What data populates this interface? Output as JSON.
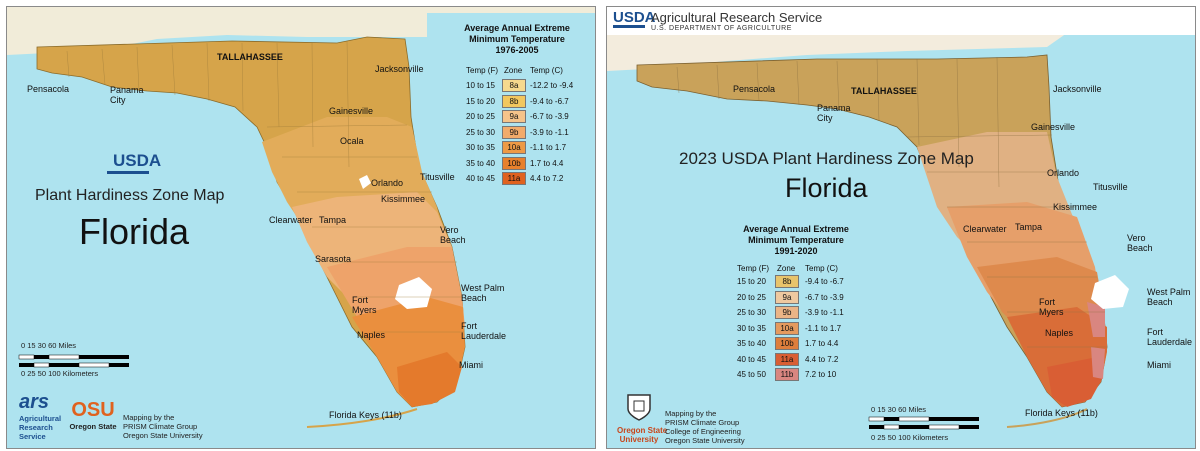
{
  "left_map": {
    "title": "Plant Hardiness Zone Map",
    "state": "Florida",
    "usda_logo_text": "USDA",
    "legend": {
      "title_lines": [
        "Average Annual Extreme",
        "Minimum Temperature",
        "1976-2005"
      ],
      "col_temp_f": "Temp (F)",
      "col_zone": "Zone",
      "col_temp_c": "Temp (C)",
      "rows": [
        {
          "temp_f": "10 to 15",
          "zone": "8a",
          "temp_c": "-12.2 to -9.4",
          "color": "#f6d98d"
        },
        {
          "temp_f": "15 to 20",
          "zone": "8b",
          "temp_c": "-9.4 to -6.7",
          "color": "#f2c75e"
        },
        {
          "temp_f": "20 to 25",
          "zone": "9a",
          "temp_c": "-6.7 to -3.9",
          "color": "#f5c38a"
        },
        {
          "temp_f": "25 to 30",
          "zone": "9b",
          "temp_c": "-3.9 to -1.1",
          "color": "#f2ab6a"
        },
        {
          "temp_f": "30 to 35",
          "zone": "10a",
          "temp_c": "-1.1 to 1.7",
          "color": "#ee9a45"
        },
        {
          "temp_f": "35 to 40",
          "zone": "10b",
          "temp_c": "1.7 to 4.4",
          "color": "#e8812c"
        },
        {
          "temp_f": "40 to 45",
          "zone": "11a",
          "temp_c": "4.4 to 7.2",
          "color": "#e0621f"
        }
      ]
    },
    "cities": [
      "Pensacola",
      "Panama City",
      "TALLAHASSEE",
      "Jacksonville",
      "Gainesville",
      "Ocala",
      "Orlando",
      "Titusville",
      "Kissimmee",
      "Clearwater",
      "Tampa",
      "Vero Beach",
      "Sarasota",
      "West Palm Beach",
      "Fort Myers",
      "Naples",
      "Fort Lauderdale",
      "Miami",
      "Florida Keys (11b)"
    ],
    "scale": {
      "miles_ticks": "0  15  30      60 Miles",
      "km_ticks": "0   25  50      100 Kilometers"
    },
    "credits": [
      "Mapping by the",
      "PRISM Climate Group",
      "Oregon State University"
    ],
    "ars_text": [
      "Agricultural",
      "Research",
      "Service"
    ],
    "osu_text": [
      "OSU",
      "Oregon State"
    ]
  },
  "right_map": {
    "header_agency": "Agricultural Research Service",
    "header_dept": "U.S. DEPARTMENT OF AGRICULTURE",
    "usda_logo_text": "USDA",
    "title": "2023 USDA Plant Hardiness Zone Map",
    "state": "Florida",
    "legend": {
      "title_lines": [
        "Average Annual Extreme",
        "Minimum Temperature",
        "1991-2020"
      ],
      "col_temp_f": "Temp (F)",
      "col_zone": "Zone",
      "col_temp_c": "Temp (C)",
      "rows": [
        {
          "temp_f": "15 to 20",
          "zone": "8b",
          "temp_c": "-9.4 to -6.7",
          "color": "#e8c46b"
        },
        {
          "temp_f": "20 to 25",
          "zone": "9a",
          "temp_c": "-6.7 to -3.9",
          "color": "#efc9a0"
        },
        {
          "temp_f": "25 to 30",
          "zone": "9b",
          "temp_c": "-3.9 to -1.1",
          "color": "#ebb486"
        },
        {
          "temp_f": "30 to 35",
          "zone": "10a",
          "temp_c": "-1.1 to 1.7",
          "color": "#e59a5e"
        },
        {
          "temp_f": "35 to 40",
          "zone": "10b",
          "temp_c": "1.7 to 4.4",
          "color": "#de7e3c"
        },
        {
          "temp_f": "40 to 45",
          "zone": "11a",
          "temp_c": "4.4 to 7.2",
          "color": "#d95e34"
        },
        {
          "temp_f": "45 to 50",
          "zone": "11b",
          "temp_c": "7.2 to 10",
          "color": "#d98680"
        }
      ]
    },
    "cities": [
      "Pensacola",
      "Panama City",
      "TALLAHASSEE",
      "Jacksonville",
      "Gainesville",
      "Orlando",
      "Titusville",
      "Kissimmee",
      "Clearwater",
      "Tampa",
      "Vero Beach",
      "West Palm Beach",
      "Fort Myers",
      "Naples",
      "Fort Lauderdale",
      "Miami",
      "Florida Keys (11b)"
    ],
    "scale": {
      "miles_ticks": "0  15 30      60 Miles",
      "km_ticks": "0  25 50      100 Kilometers"
    },
    "credits": [
      "Mapping by the",
      "PRISM Climate Group",
      "College of Engineering",
      "Oregon State University"
    ],
    "osu_text": [
      "Oregon State",
      "University"
    ]
  }
}
